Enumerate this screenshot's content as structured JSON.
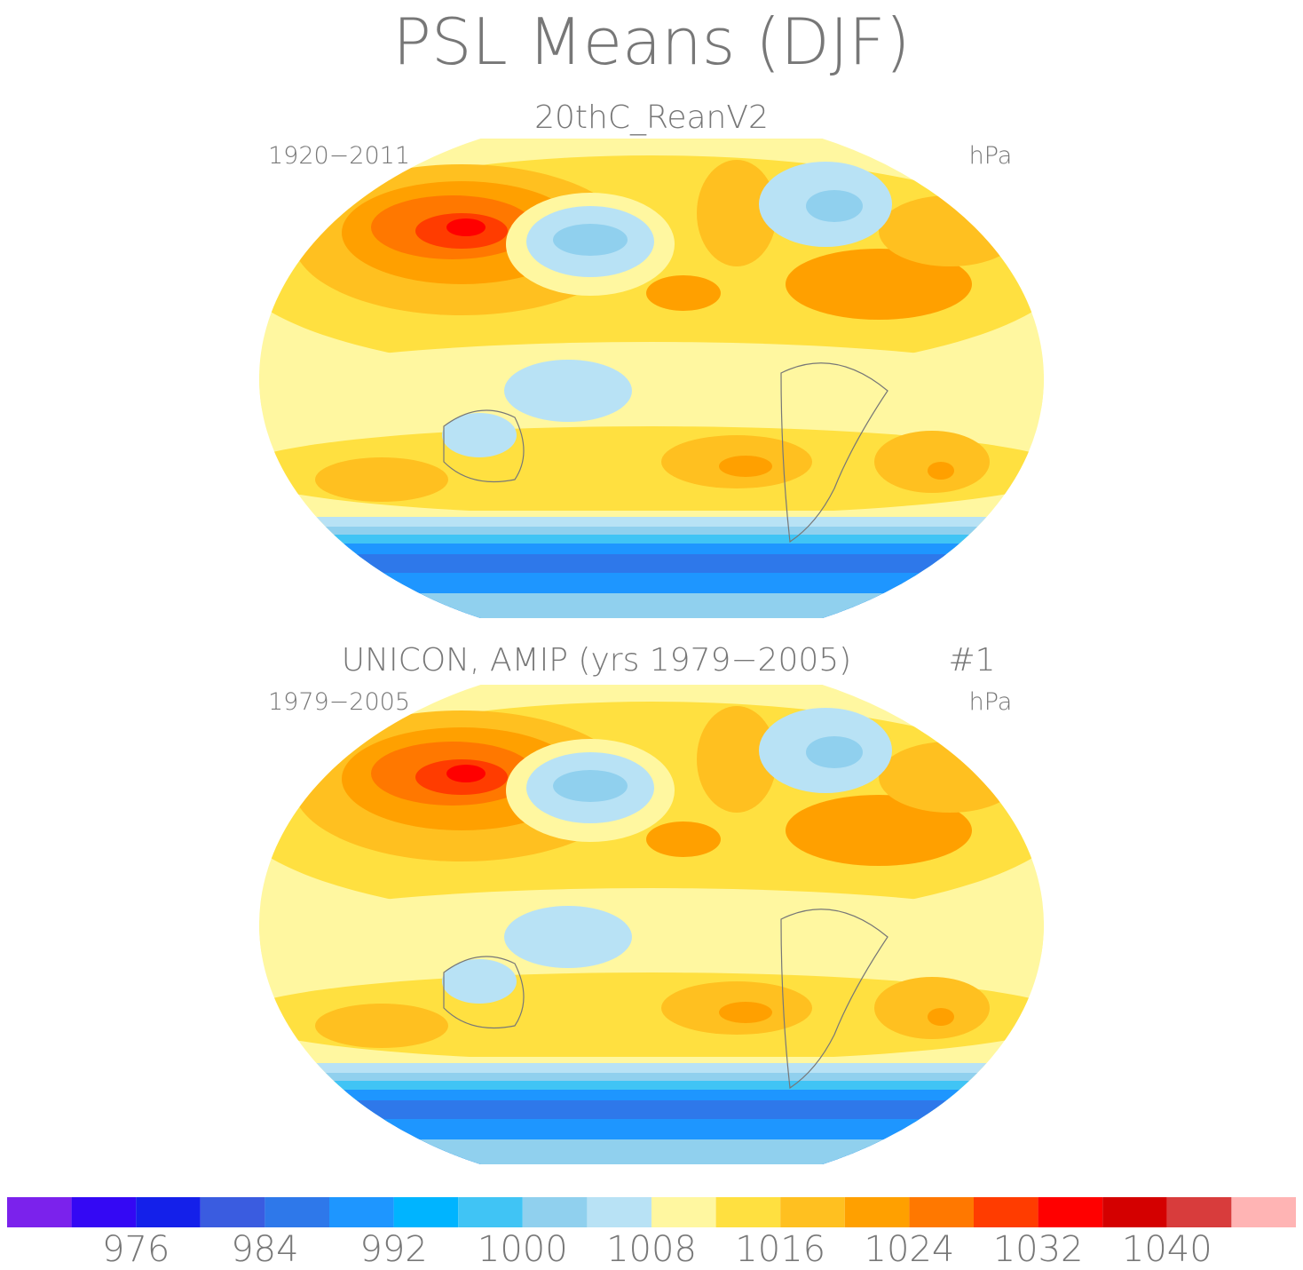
{
  "title": "PSL Means (DJF)",
  "panels": [
    {
      "title": "20thC_ReanV2",
      "period": "1920−2011",
      "units": "hPa"
    },
    {
      "title": "UNICON, AMIP (yrs 1979−2005)",
      "run": "#1",
      "period": "1979−2005",
      "units": "hPa"
    }
  ],
  "colorbar": {
    "colors": [
      "#7b22ec",
      "#3408f4",
      "#1420ea",
      "#3a5ce0",
      "#2e78ea",
      "#1e96ff",
      "#00b4ff",
      "#40c4f5",
      "#90d0ee",
      "#b8e2f5",
      "#fff7a0",
      "#ffe040",
      "#ffc020",
      "#ffa000",
      "#ff7800",
      "#ff3c00",
      "#ff0000",
      "#d40000",
      "#d83c3c",
      "#ffb4b4"
    ],
    "labels": [
      976,
      984,
      992,
      1000,
      1008,
      1016,
      1024,
      1032,
      1040
    ]
  }
}
